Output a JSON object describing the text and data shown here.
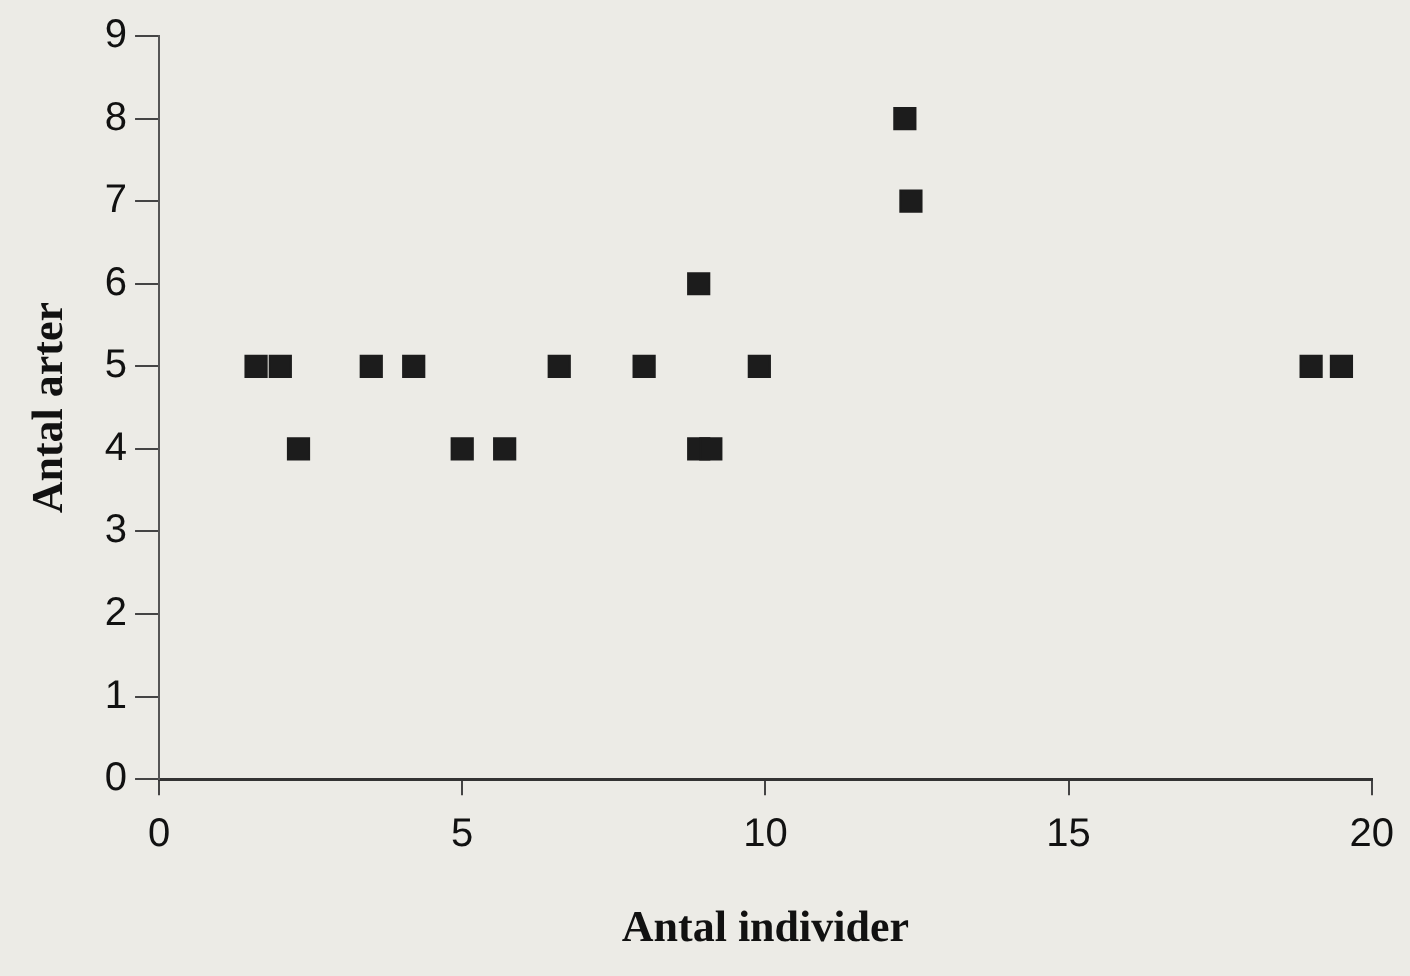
{
  "chart_data": {
    "type": "scatter",
    "xlabel": "Antal individer",
    "ylabel": "Antal arter",
    "marker": "square",
    "legend": false,
    "grid": false,
    "xlim": [
      0,
      20
    ],
    "xticks": [
      0,
      5,
      10,
      15,
      20
    ],
    "ylim": [
      0,
      9
    ],
    "yticks": [
      0,
      1,
      2,
      3,
      4,
      5,
      6,
      7,
      8,
      9
    ],
    "series": [
      {
        "color": "#1c1c1c",
        "x": [
          1.6,
          2.0,
          3.5,
          4.2,
          6.6,
          8.0,
          9.9,
          19.0,
          19.5,
          8.9,
          2.3,
          5.0,
          5.7,
          8.9,
          9.1,
          12.3,
          12.4
        ],
        "values": [
          5,
          5,
          5,
          5,
          5,
          5,
          5,
          5,
          5,
          6,
          4,
          4,
          4,
          4,
          4,
          8,
          7
        ]
      }
    ]
  }
}
